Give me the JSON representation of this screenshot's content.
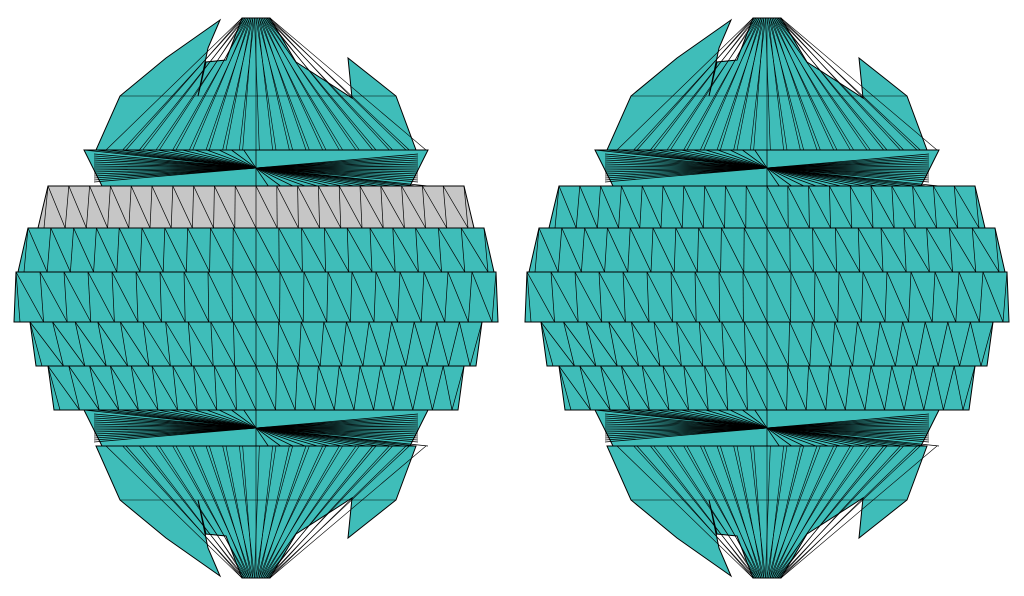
{
  "colors": {
    "background": "#ffffff",
    "mesh_fill": "#3fbdb9",
    "highlight_fill": "#c6c6c6",
    "edge": "#000000"
  },
  "panels": [
    {
      "id": "left",
      "highlighted_band": 0
    },
    {
      "id": "right",
      "highlighted_band": null
    }
  ]
}
